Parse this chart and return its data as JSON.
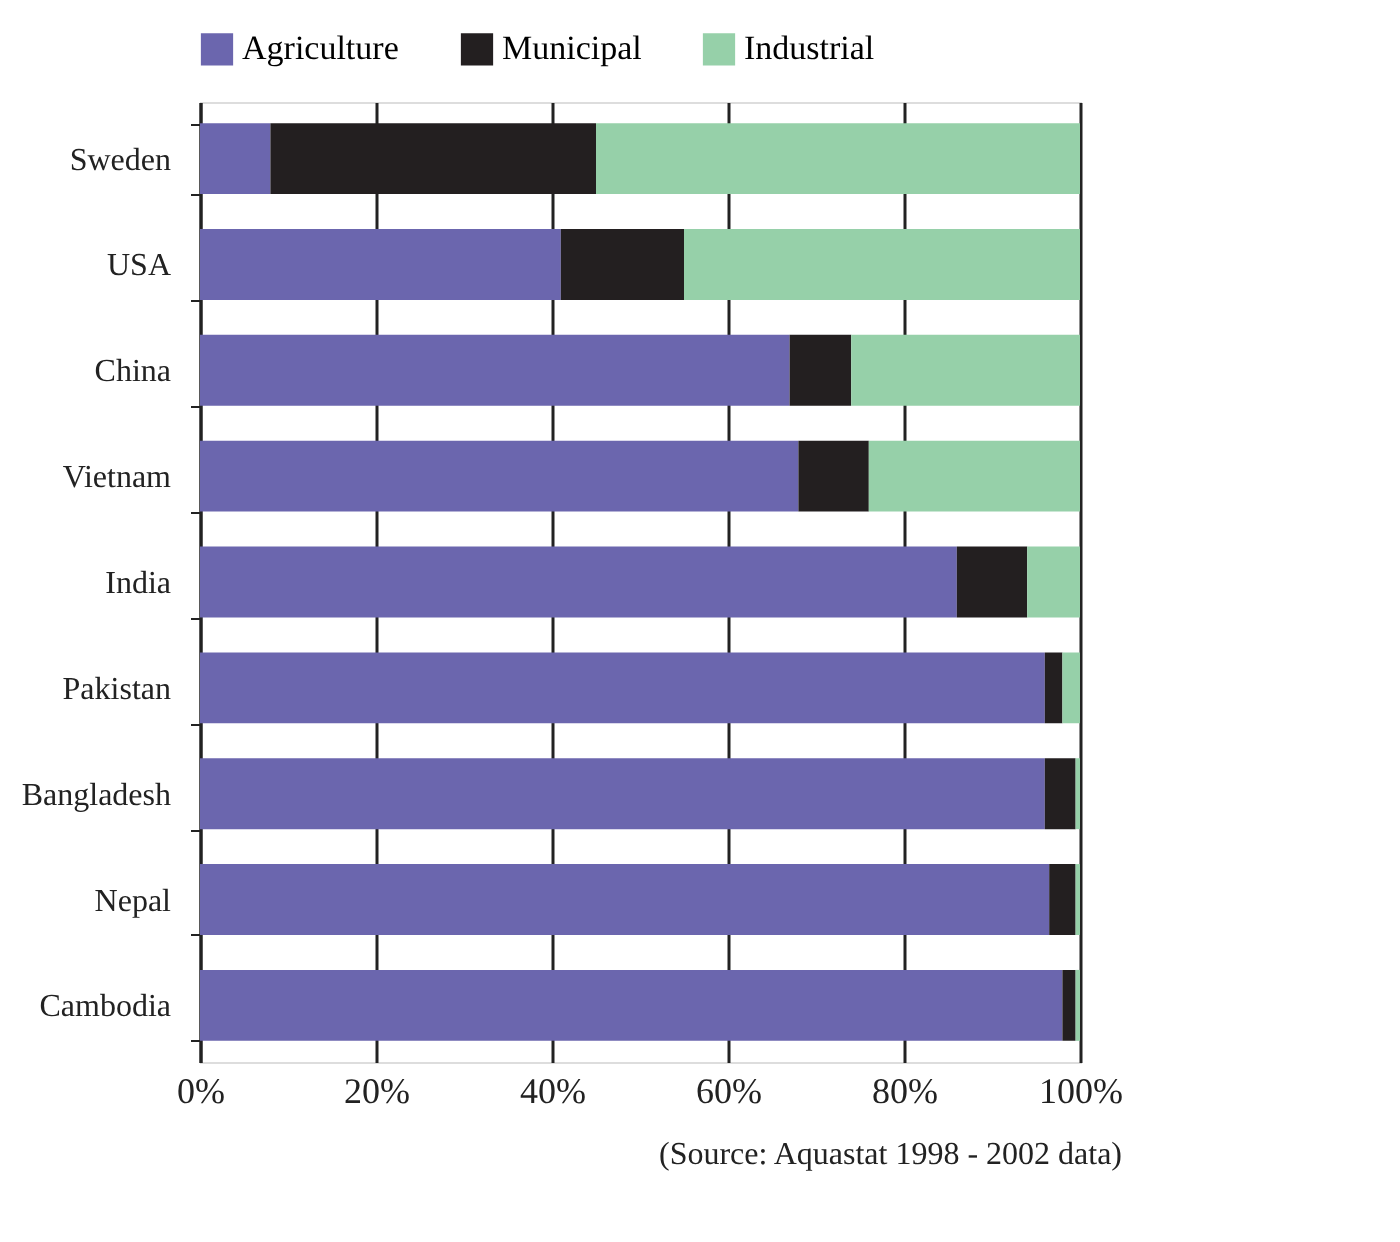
{
  "chart_data": {
    "type": "bar",
    "orientation": "horizontal",
    "stacked": true,
    "categories": [
      "Sweden",
      "USA",
      "China",
      "Vietnam",
      "India",
      "Pakistan",
      "Bangladesh",
      "Nepal",
      "Cambodia"
    ],
    "series": [
      {
        "name": "Agriculture",
        "color": "#6b66ae",
        "values": [
          8,
          41,
          67,
          68,
          86,
          96,
          96,
          96.5,
          98
        ]
      },
      {
        "name": "Municipal",
        "color": "#231f20",
        "values": [
          37,
          14,
          7,
          8,
          8,
          2,
          3.5,
          3,
          1.5
        ]
      },
      {
        "name": "Industrial",
        "color": "#96d0a9",
        "values": [
          55,
          45,
          26,
          24,
          6,
          2,
          0.5,
          0.5,
          0.5
        ]
      }
    ],
    "xlim": [
      0,
      100
    ],
    "xticks": [
      {
        "value": 0,
        "label": "0%"
      },
      {
        "value": 20,
        "label": "20%"
      },
      {
        "value": 40,
        "label": "40%"
      },
      {
        "value": 60,
        "label": "60%"
      },
      {
        "value": 80,
        "label": "80%"
      },
      {
        "value": 100,
        "label": "100%"
      }
    ],
    "grid": "x",
    "legend": "top",
    "annotations": [
      "(Source: Aquastat 1998 - 2002 data)"
    ]
  }
}
